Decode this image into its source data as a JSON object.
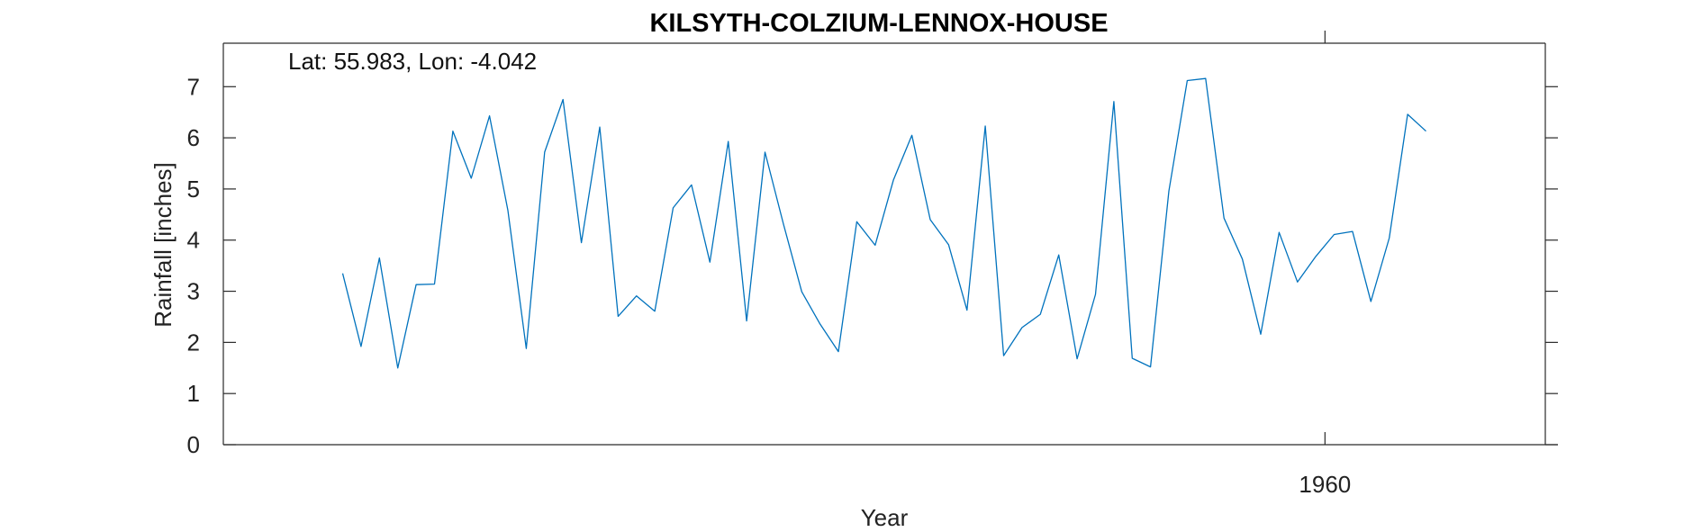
{
  "chart_data": {
    "type": "line",
    "title": "KILSYTH-COLZIUM-LENNOX-HOUSE",
    "annotation": "Lat: 55.983, Lon: -4.042",
    "xlabel": "Year",
    "ylabel": "Rainfall [inches]",
    "xlim": [
      1900,
      1972
    ],
    "ylim": [
      0,
      7.85
    ],
    "x_ticks": [
      1960
    ],
    "x_tick_labels": [
      "1960"
    ],
    "y_ticks": [
      0,
      1,
      2,
      3,
      4,
      5,
      6,
      7
    ],
    "y_tick_labels": [
      "0",
      "1",
      "2",
      "3",
      "4",
      "5",
      "6",
      "7"
    ],
    "grid": false,
    "series": [
      {
        "color": "#0072bd",
        "x": [
          1906.5,
          1907.5,
          1908.5,
          1909.5,
          1910.5,
          1911.5,
          1912.5,
          1913.5,
          1914.5,
          1915.5,
          1916.5,
          1917.5,
          1918.5,
          1919.5,
          1920.5,
          1921.5,
          1922.5,
          1923.5,
          1924.5,
          1925.5,
          1926.5,
          1927.5,
          1928.5,
          1929.5,
          1930.5,
          1931.5,
          1932.5,
          1933.5,
          1934.5,
          1935.5,
          1936.5,
          1937.5,
          1938.5,
          1939.5,
          1940.5,
          1941.5,
          1942.5,
          1943.5,
          1944.5,
          1945.5,
          1946.5,
          1947.5,
          1948.5,
          1949.5,
          1950.5,
          1951.5,
          1952.5,
          1953.5,
          1954.5,
          1955.5,
          1956.5,
          1957.5,
          1958.5,
          1959.5,
          1960.5,
          1961.5,
          1962.5,
          1963.5,
          1964.5,
          1965.5
        ],
        "values": [
          3.35,
          1.92,
          3.65,
          1.5,
          3.13,
          3.14,
          6.13,
          5.21,
          6.43,
          4.58,
          1.88,
          5.72,
          6.75,
          3.95,
          6.21,
          2.51,
          2.91,
          2.61,
          4.63,
          5.08,
          3.57,
          5.93,
          2.42,
          5.72,
          4.32,
          2.99,
          2.36,
          1.82,
          4.36,
          3.9,
          5.18,
          6.05,
          4.4,
          3.91,
          2.63,
          6.23,
          1.74,
          2.29,
          2.55,
          3.71,
          1.68,
          2.94,
          6.71,
          1.69,
          1.52,
          4.96,
          7.12,
          7.16,
          4.43,
          3.63,
          2.16,
          4.15,
          3.18,
          3.68,
          4.11,
          4.17,
          2.8,
          4.04,
          6.46,
          6.13
        ]
      }
    ]
  }
}
